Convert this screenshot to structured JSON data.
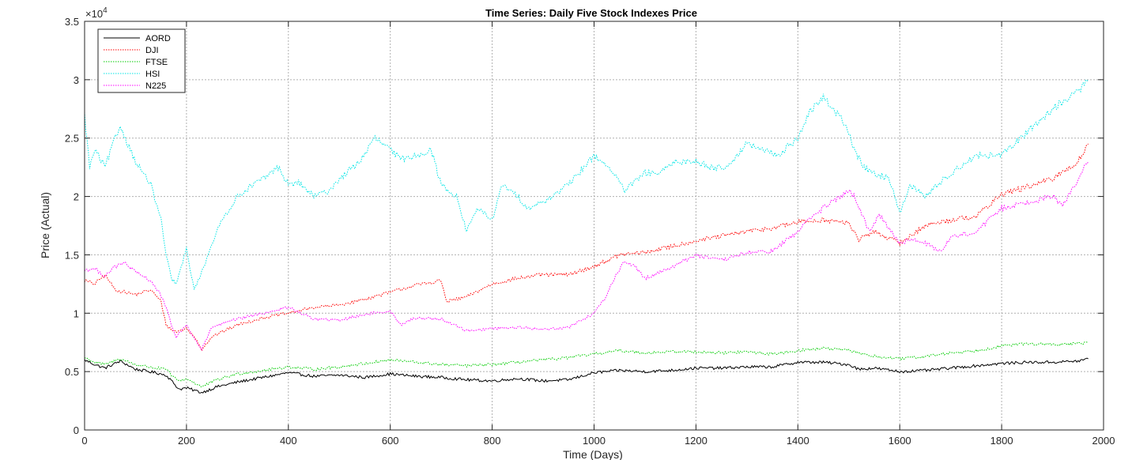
{
  "chart_data": {
    "type": "line",
    "title": "Time Series: Daily Five Stock Indexes Price",
    "xlabel": "Time (Days)",
    "ylabel": "Price (Actual)",
    "xlim": [
      0,
      2000
    ],
    "ylim": [
      0,
      35000
    ],
    "xticks": [
      0,
      200,
      400,
      600,
      800,
      1000,
      1200,
      1400,
      1600,
      1800,
      2000
    ],
    "yticks": [
      0,
      5000,
      10000,
      15000,
      20000,
      25000,
      30000,
      35000
    ],
    "ytick_labels": [
      "0",
      "0.5",
      "1",
      "1.5",
      "2",
      "2.5",
      "3",
      "3.5"
    ],
    "y_exponent_label": "×10",
    "y_exponent_power": "4",
    "grid": true,
    "legend_position": "top-left",
    "series": [
      {
        "name": "AORD",
        "color": "#000000",
        "dash": "solid",
        "x": [
          0,
          20,
          40,
          70,
          100,
          140,
          160,
          175,
          185,
          200,
          230,
          260,
          300,
          350,
          400,
          450,
          500,
          550,
          600,
          650,
          700,
          750,
          800,
          850,
          900,
          950,
          1000,
          1050,
          1100,
          1150,
          1200,
          1250,
          1300,
          1350,
          1400,
          1450,
          1500,
          1520,
          1550,
          1600,
          1650,
          1700,
          1750,
          1800,
          1850,
          1900,
          1950,
          1970
        ],
        "y": [
          6000,
          5600,
          5300,
          5900,
          5200,
          4900,
          4700,
          4000,
          3500,
          3600,
          3200,
          3700,
          4100,
          4500,
          4900,
          4600,
          4700,
          4500,
          4800,
          4600,
          4500,
          4300,
          4200,
          4400,
          4200,
          4300,
          4900,
          5100,
          5000,
          5100,
          5300,
          5300,
          5400,
          5400,
          5800,
          5800,
          5600,
          5200,
          5300,
          5000,
          5100,
          5300,
          5500,
          5700,
          5800,
          5800,
          5900,
          6100
        ]
      },
      {
        "name": "DJI",
        "color": "#ff0000",
        "dash": "dotted",
        "x": [
          0,
          20,
          40,
          60,
          80,
          100,
          130,
          150,
          160,
          170,
          180,
          200,
          220,
          230,
          250,
          300,
          350,
          400,
          450,
          500,
          550,
          600,
          650,
          700,
          710,
          750,
          800,
          850,
          900,
          950,
          1000,
          1050,
          1100,
          1150,
          1200,
          1250,
          1300,
          1350,
          1400,
          1450,
          1500,
          1520,
          1550,
          1600,
          1650,
          1700,
          1750,
          1800,
          1850,
          1900,
          1950,
          1970
        ],
        "y": [
          12800,
          12500,
          13300,
          12000,
          11800,
          11600,
          12000,
          11000,
          9000,
          8600,
          8400,
          8700,
          7700,
          6900,
          8000,
          9000,
          9600,
          10000,
          10500,
          10700,
          11200,
          11800,
          12400,
          12800,
          11000,
          11400,
          12500,
          13000,
          13300,
          13300,
          14000,
          15000,
          15200,
          15700,
          16200,
          16600,
          17000,
          17300,
          17800,
          18000,
          17700,
          16300,
          17000,
          16000,
          17500,
          18000,
          18300,
          20200,
          20800,
          21500,
          23000,
          24500
        ]
      },
      {
        "name": "FTSE",
        "color": "#00cc00",
        "dash": "dotted",
        "x": [
          0,
          20,
          40,
          70,
          100,
          140,
          160,
          175,
          185,
          200,
          230,
          260,
          300,
          350,
          400,
          450,
          500,
          550,
          600,
          650,
          700,
          750,
          800,
          850,
          900,
          950,
          1000,
          1050,
          1100,
          1150,
          1200,
          1250,
          1300,
          1350,
          1400,
          1450,
          1500,
          1550,
          1600,
          1650,
          1700,
          1750,
          1800,
          1850,
          1900,
          1950,
          1970
        ],
        "y": [
          6200,
          5800,
          5600,
          6100,
          5600,
          5300,
          5200,
          4500,
          4200,
          4400,
          3700,
          4300,
          4800,
          5100,
          5400,
          5200,
          5400,
          5700,
          6000,
          5800,
          5600,
          5500,
          5600,
          5800,
          6000,
          6200,
          6500,
          6800,
          6600,
          6700,
          6700,
          6600,
          6700,
          6500,
          6800,
          7000,
          6800,
          6300,
          6100,
          6300,
          6600,
          6800,
          7200,
          7400,
          7300,
          7400,
          7500
        ]
      },
      {
        "name": "HSI",
        "color": "#00e5e5",
        "dash": "dotted",
        "x": [
          0,
          10,
          20,
          40,
          60,
          70,
          100,
          130,
          150,
          160,
          170,
          180,
          190,
          200,
          215,
          230,
          250,
          270,
          300,
          330,
          350,
          380,
          400,
          420,
          450,
          480,
          500,
          540,
          570,
          600,
          620,
          650,
          680,
          700,
          730,
          750,
          770,
          800,
          820,
          850,
          870,
          900,
          950,
          1000,
          1030,
          1060,
          1100,
          1130,
          1160,
          1200,
          1230,
          1260,
          1300,
          1330,
          1360,
          1400,
          1420,
          1450,
          1480,
          1500,
          1510,
          1530,
          1550,
          1580,
          1600,
          1620,
          1650,
          1700,
          1750,
          1800,
          1850,
          1900,
          1950,
          1970
        ],
        "y": [
          27000,
          22500,
          24000,
          22500,
          25000,
          26000,
          23000,
          21000,
          18000,
          15000,
          13000,
          12500,
          14000,
          15500,
          12000,
          13500,
          16000,
          18000,
          20000,
          21000,
          21500,
          22500,
          21000,
          21200,
          20000,
          20500,
          21500,
          23000,
          25000,
          24000,
          23200,
          23500,
          24000,
          21000,
          20000,
          17000,
          19000,
          18000,
          21000,
          20000,
          19000,
          19500,
          21000,
          23500,
          22500,
          20500,
          22000,
          22000,
          23000,
          23000,
          22500,
          22500,
          24500,
          24000,
          23500,
          25000,
          27000,
          28500,
          27000,
          25500,
          24000,
          22500,
          22000,
          21500,
          18500,
          21000,
          20000,
          22000,
          23500,
          23500,
          25500,
          27500,
          29000,
          30000
        ]
      },
      {
        "name": "N225",
        "color": "#ff00ff",
        "dash": "dotted",
        "x": [
          0,
          20,
          40,
          60,
          80,
          100,
          130,
          150,
          160,
          170,
          180,
          200,
          220,
          230,
          250,
          300,
          350,
          400,
          450,
          500,
          550,
          600,
          620,
          650,
          700,
          750,
          800,
          850,
          900,
          950,
          1000,
          1020,
          1040,
          1060,
          1080,
          1100,
          1150,
          1200,
          1250,
          1300,
          1350,
          1400,
          1420,
          1450,
          1500,
          1510,
          1540,
          1560,
          1600,
          1620,
          1650,
          1680,
          1700,
          1750,
          1800,
          1850,
          1900,
          1920,
          1950,
          1970
        ],
        "y": [
          13700,
          13800,
          13200,
          14000,
          14300,
          13500,
          12800,
          11500,
          10500,
          9000,
          8000,
          9000,
          7500,
          6900,
          8800,
          9500,
          10000,
          10500,
          9500,
          9400,
          9900,
          10200,
          9000,
          9600,
          9500,
          8500,
          8700,
          8800,
          8600,
          8800,
          10000,
          11200,
          13000,
          14500,
          14000,
          13000,
          13900,
          15000,
          14500,
          15200,
          15300,
          17000,
          18000,
          19000,
          20500,
          20000,
          17000,
          18500,
          16000,
          16300,
          16000,
          15300,
          16500,
          17000,
          19000,
          19500,
          20000,
          19300,
          21500,
          23000
        ]
      }
    ]
  }
}
